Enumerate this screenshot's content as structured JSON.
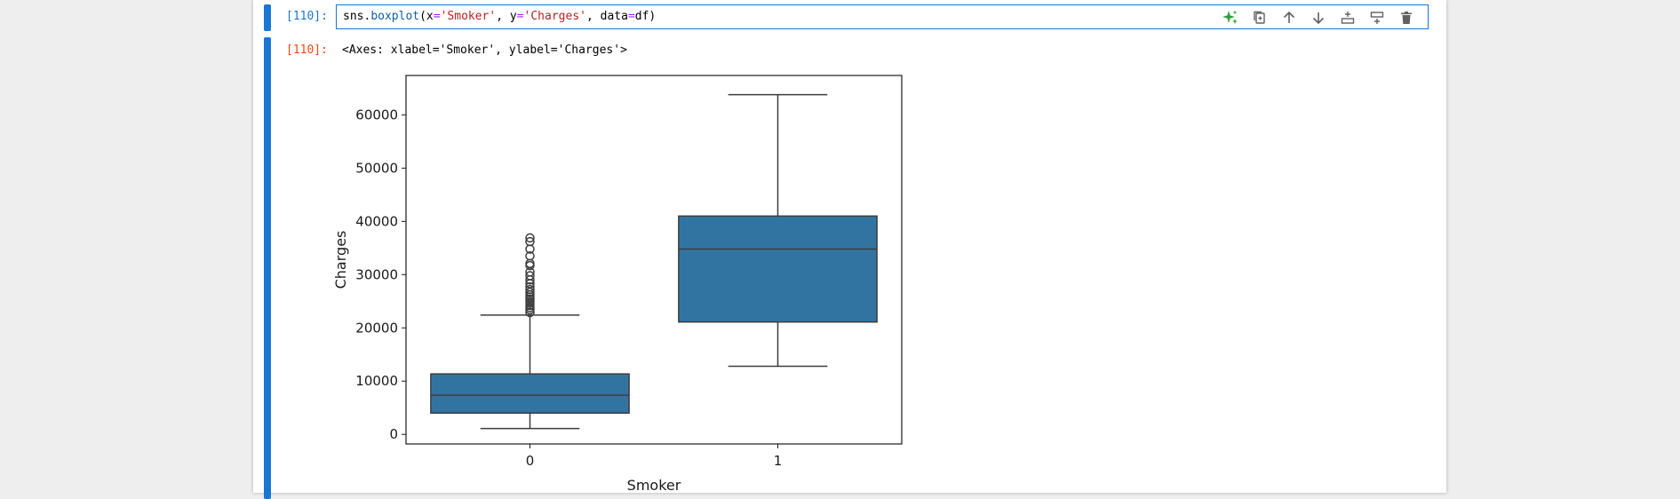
{
  "cell": {
    "in_prompt": "[110]:",
    "out_prompt": "[110]:",
    "code": {
      "t1": "sns",
      "t2": ".",
      "t3": "boxplot",
      "t4": "(x",
      "t5": "=",
      "t6": "'Smoker'",
      "t7": ", y",
      "t8": "=",
      "t9": "'Charges'",
      "t10": ", data",
      "t11": "=",
      "t12": "df)"
    },
    "output_text": "<Axes: xlabel='Smoker', ylabel='Charges'>"
  },
  "toolbar": {
    "icons": [
      "sparkle-icon",
      "copy-icon",
      "arrow-up-icon",
      "arrow-down-icon",
      "insert-above-icon",
      "insert-below-icon",
      "delete-icon"
    ]
  },
  "colors": {
    "accent": "#1976d2",
    "prompt_in": "#1976d2",
    "prompt_out": "#e64a19",
    "box_fill": "#3274a1",
    "sparkle": "#2e9e3a"
  },
  "chart_data": {
    "type": "boxplot",
    "xlabel": "Smoker",
    "ylabel": "Charges",
    "categories": [
      "0",
      "1"
    ],
    "ylim": [
      -1800,
      67400
    ],
    "yticks": [
      0,
      10000,
      20000,
      30000,
      40000,
      50000,
      60000
    ],
    "ytick_labels": [
      "0",
      "10000",
      "20000",
      "30000",
      "40000",
      "50000",
      "60000"
    ],
    "boxes": [
      {
        "category": "0",
        "whisker_low": 1100,
        "q1": 4000,
        "median": 7350,
        "q3": 11350,
        "whisker_high": 22400,
        "outliers": [
          22900,
          23400,
          23800,
          24200,
          24600,
          25000,
          25400,
          25800,
          26200,
          26700,
          27200,
          27700,
          28300,
          29000,
          29800,
          30500,
          31700,
          32100,
          33500,
          34800,
          36200,
          36900
        ]
      },
      {
        "category": "1",
        "whisker_low": 12800,
        "q1": 21100,
        "median": 34800,
        "q3": 41000,
        "whisker_high": 63800,
        "outliers": []
      }
    ]
  }
}
